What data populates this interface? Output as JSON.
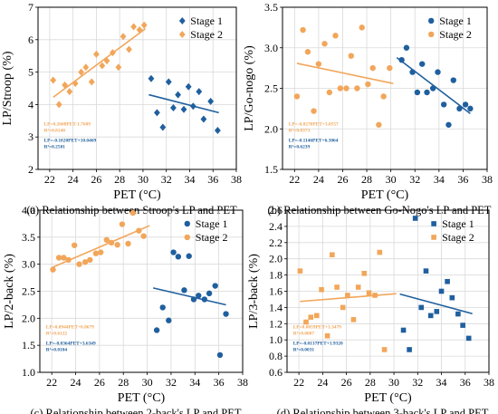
{
  "colors": {
    "stage1": "#1f5f9e",
    "stage2": "#f2a65a",
    "axis": "#000000",
    "grid": "#d9d9d9"
  },
  "chart_data": [
    {
      "type": "scatter",
      "caption": "(a) Relationship between Stroop's LP and PET",
      "xlabel": "PET (°C)",
      "ylabel": "LP/Stroop (%)",
      "xlim": [
        21,
        38
      ],
      "ylim": [
        2,
        7
      ],
      "xticks": [
        "22",
        "24",
        "26",
        "28",
        "30",
        "32",
        "34",
        "36",
        "38"
      ],
      "yticks": [
        "2",
        "3",
        "4",
        "5",
        "6",
        "7"
      ],
      "grid": true,
      "legend_position": "top-right",
      "series": [
        {
          "name": "Stage 1",
          "marker": "diamond",
          "color": "#1f5f9e",
          "points": [
            [
              30.7,
              4.8
            ],
            [
              31.2,
              3.75
            ],
            [
              31.7,
              3.3
            ],
            [
              32.2,
              4.7
            ],
            [
              32.6,
              3.9
            ],
            [
              33.0,
              4.3
            ],
            [
              33.5,
              3.85
            ],
            [
              33.9,
              4.55
            ],
            [
              34.3,
              3.95
            ],
            [
              34.8,
              4.4
            ],
            [
              35.2,
              3.55
            ],
            [
              35.8,
              4.1
            ],
            [
              36.4,
              3.2
            ]
          ],
          "fit": [
            30.5,
            36.5
          ],
          "equation": "LP=-0.1820PET+10.0469",
          "r2": "R²=0.2501"
        },
        {
          "name": "Stage 2",
          "marker": "diamond",
          "color": "#f2a65a",
          "points": [
            [
              22.3,
              4.75
            ],
            [
              22.8,
              4.0
            ],
            [
              23.3,
              4.6
            ],
            [
              23.7,
              4.4
            ],
            [
              24.2,
              4.65
            ],
            [
              24.7,
              5.0
            ],
            [
              25.1,
              5.15
            ],
            [
              25.6,
              4.7
            ],
            [
              26.0,
              5.55
            ],
            [
              26.5,
              5.2
            ],
            [
              26.9,
              5.35
            ],
            [
              27.4,
              5.6
            ],
            [
              27.9,
              5.15
            ],
            [
              28.3,
              6.1
            ],
            [
              28.8,
              5.7
            ],
            [
              29.2,
              6.4
            ],
            [
              29.7,
              6.3
            ],
            [
              30.1,
              6.45
            ]
          ],
          "fit": [
            22.3,
            30.2
          ],
          "equation": "LP=0.2608PET-1.7609",
          "r2": "R²=0.8140"
        }
      ]
    },
    {
      "type": "scatter",
      "caption": "(b) Relationship between Go-Nogo's LP and PET",
      "xlabel": "PET (°C)",
      "ylabel": "LP/Go-nogo (%)",
      "xlim": [
        21,
        38
      ],
      "ylim": [
        1.5,
        3.5
      ],
      "xticks": [
        "22",
        "24",
        "26",
        "28",
        "30",
        "32",
        "34",
        "36",
        "38"
      ],
      "yticks": [
        "1.5",
        "2.0",
        "2.5",
        "3.0",
        "3.5"
      ],
      "grid": true,
      "legend_position": "top-right",
      "series": [
        {
          "name": "Stage 1",
          "marker": "circle",
          "color": "#1f5f9e",
          "points": [
            [
              30.9,
              2.85
            ],
            [
              31.3,
              3.0
            ],
            [
              31.8,
              2.7
            ],
            [
              32.2,
              2.45
            ],
            [
              32.6,
              2.8
            ],
            [
              33.0,
              2.45
            ],
            [
              33.5,
              2.5
            ],
            [
              33.9,
              2.7
            ],
            [
              34.4,
              2.3
            ],
            [
              34.8,
              2.05
            ],
            [
              35.2,
              2.6
            ],
            [
              35.7,
              2.25
            ],
            [
              36.2,
              2.3
            ],
            [
              36.6,
              2.25
            ]
          ],
          "fit": [
            30.5,
            36.6
          ],
          "equation": "LP=-0.1146PET+6.3064",
          "r2": "R²=0.6239"
        },
        {
          "name": "Stage 2",
          "marker": "circle",
          "color": "#f2a65a",
          "points": [
            [
              22.2,
              2.4
            ],
            [
              22.7,
              3.22
            ],
            [
              23.1,
              2.95
            ],
            [
              23.6,
              2.22
            ],
            [
              24.0,
              2.8
            ],
            [
              24.5,
              3.05
            ],
            [
              24.9,
              2.45
            ],
            [
              25.4,
              3.15
            ],
            [
              25.8,
              2.5
            ],
            [
              26.3,
              2.5
            ],
            [
              26.7,
              2.9
            ],
            [
              27.2,
              2.5
            ],
            [
              27.6,
              3.25
            ],
            [
              28.1,
              2.55
            ],
            [
              28.5,
              2.75
            ],
            [
              29.0,
              2.05
            ],
            [
              29.4,
              2.4
            ],
            [
              29.9,
              2.75
            ]
          ],
          "fit": [
            22.2,
            30.2
          ],
          "equation": "LP=-0.0270PET+3.0557",
          "r2": "R²=0.0373"
        }
      ]
    },
    {
      "type": "scatter",
      "caption": "(c) Relationship between 2-back's LP and PET",
      "xlabel": "PET (°C)",
      "ylabel": "LP/2-back (%)",
      "xlim": [
        21,
        38
      ],
      "ylim": [
        1.0,
        4.0
      ],
      "xticks": [
        "22",
        "24",
        "26",
        "28",
        "30",
        "32",
        "34",
        "36",
        "38"
      ],
      "yticks": [
        "1.0",
        "1.5",
        "2.0",
        "2.5",
        "3.0",
        "3.5",
        "4.0"
      ],
      "grid": true,
      "legend_position": "top-right",
      "series": [
        {
          "name": "Stage 1",
          "marker": "circle",
          "color": "#1f5f9e",
          "points": [
            [
              30.8,
              1.78
            ],
            [
              31.3,
              2.2
            ],
            [
              31.8,
              1.96
            ],
            [
              32.2,
              3.22
            ],
            [
              32.6,
              3.14
            ],
            [
              33.1,
              2.52
            ],
            [
              33.5,
              3.15
            ],
            [
              33.9,
              2.35
            ],
            [
              34.3,
              2.42
            ],
            [
              34.8,
              2.35
            ],
            [
              35.2,
              2.46
            ],
            [
              35.7,
              2.6
            ],
            [
              36.1,
              1.32
            ],
            [
              36.6,
              2.08
            ]
          ],
          "fit": [
            30.5,
            36.6
          ],
          "equation": "LP=-0.0364PET+3.6349",
          "r2": "R²=0.0104"
        },
        {
          "name": "Stage 2",
          "marker": "circle",
          "color": "#f2a65a",
          "points": [
            [
              22.1,
              2.9
            ],
            [
              22.6,
              3.12
            ],
            [
              23.0,
              3.12
            ],
            [
              23.4,
              3.08
            ],
            [
              23.9,
              3.35
            ],
            [
              24.3,
              3.0
            ],
            [
              24.8,
              3.04
            ],
            [
              25.2,
              3.08
            ],
            [
              25.7,
              3.2
            ],
            [
              26.1,
              3.22
            ],
            [
              26.6,
              3.45
            ],
            [
              27.0,
              3.4
            ],
            [
              27.5,
              3.36
            ],
            [
              27.9,
              3.74
            ],
            [
              28.4,
              3.38
            ],
            [
              28.8,
              3.95
            ],
            [
              29.3,
              3.62
            ],
            [
              29.7,
              3.52
            ]
          ],
          "fit": [
            22.1,
            30.2
          ],
          "equation": "LP=0.0944PET+0.8679",
          "r2": "R²=0.6122"
        }
      ]
    },
    {
      "type": "scatter",
      "caption": "(d) Relationship between 3-back's LP and PET",
      "xlabel": "PET (°C)",
      "ylabel": "LP/3-back (%)",
      "xlim": [
        21,
        38
      ],
      "ylim": [
        0.6,
        2.6
      ],
      "xticks": [
        "22",
        "24",
        "26",
        "28",
        "30",
        "32",
        "34",
        "36",
        "38"
      ],
      "yticks": [
        "0.6",
        "0.8",
        "1.0",
        "1.2",
        "1.4",
        "1.6",
        "1.8",
        "2.0",
        "2.2",
        "2.4",
        "2.6"
      ],
      "grid": true,
      "legend_position": "top-right",
      "series": [
        {
          "name": "Stage 1",
          "marker": "square",
          "color": "#1f5f9e",
          "points": [
            [
              30.8,
              1.12
            ],
            [
              31.3,
              0.88
            ],
            [
              31.8,
              2.5
            ],
            [
              32.3,
              1.4
            ],
            [
              32.7,
              1.85
            ],
            [
              33.1,
              1.3
            ],
            [
              33.6,
              1.35
            ],
            [
              34.0,
              1.6
            ],
            [
              34.5,
              1.72
            ],
            [
              34.9,
              1.52
            ],
            [
              35.4,
              1.32
            ],
            [
              35.8,
              1.18
            ],
            [
              36.3,
              1.02
            ]
          ],
          "fit": [
            30.5,
            36.6
          ],
          "equation": "LP=-0.0137PET+1.9320",
          "r2": "R²=0.0031"
        },
        {
          "name": "Stage 2",
          "marker": "square",
          "color": "#f2a65a",
          "points": [
            [
              22.1,
              1.85
            ],
            [
              22.6,
              1.22
            ],
            [
              23.0,
              1.28
            ],
            [
              23.5,
              1.3
            ],
            [
              23.9,
              1.62
            ],
            [
              24.4,
              1.05
            ],
            [
              24.8,
              2.05
            ],
            [
              25.2,
              1.65
            ],
            [
              25.7,
              1.4
            ],
            [
              26.1,
              1.55
            ],
            [
              26.6,
              1.25
            ],
            [
              27.0,
              1.65
            ],
            [
              27.5,
              1.82
            ],
            [
              27.9,
              1.58
            ],
            [
              28.4,
              1.55
            ],
            [
              28.8,
              2.08
            ],
            [
              29.2,
              0.88
            ]
          ],
          "fit": [
            22.1,
            30.2
          ],
          "equation": "LP=0.0059PET+1.3479",
          "r2": "R²=0.0007"
        }
      ]
    }
  ]
}
